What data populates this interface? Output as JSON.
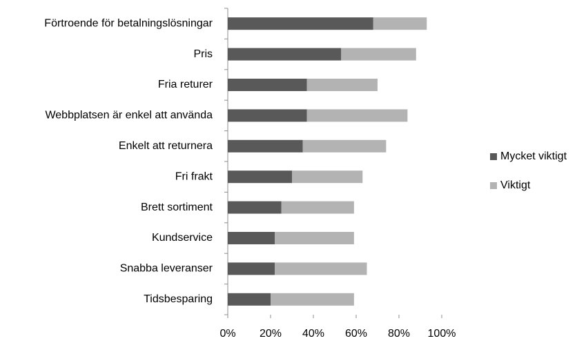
{
  "chart_data": {
    "type": "stacked-bar-horizontal",
    "categories": [
      "Förtroende för betalningslösningar",
      "Pris",
      "Fria returer",
      "Webbplatsen är enkel att använda",
      "Enkelt att returnera",
      "Fri frakt",
      "Brett sortiment",
      "Kundservice",
      "Snabba leveranser",
      "Tidsbesparing"
    ],
    "series": [
      {
        "name": "Mycket viktigt",
        "color": "#595959",
        "values": [
          68,
          53,
          37,
          37,
          35,
          30,
          25,
          22,
          22,
          20
        ]
      },
      {
        "name": "Viktigt",
        "color": "#b3b3b3",
        "values": [
          25,
          35,
          33,
          47,
          39,
          33,
          34,
          37,
          43,
          39
        ]
      }
    ],
    "xlim": [
      0,
      100
    ],
    "xticks": [
      {
        "value": 0,
        "label": "0%"
      },
      {
        "value": 20,
        "label": "20%"
      },
      {
        "value": 40,
        "label": "40%"
      },
      {
        "value": 60,
        "label": "60%"
      },
      {
        "value": 80,
        "label": "80%"
      },
      {
        "value": 100,
        "label": "100%"
      }
    ],
    "legend": "right"
  }
}
